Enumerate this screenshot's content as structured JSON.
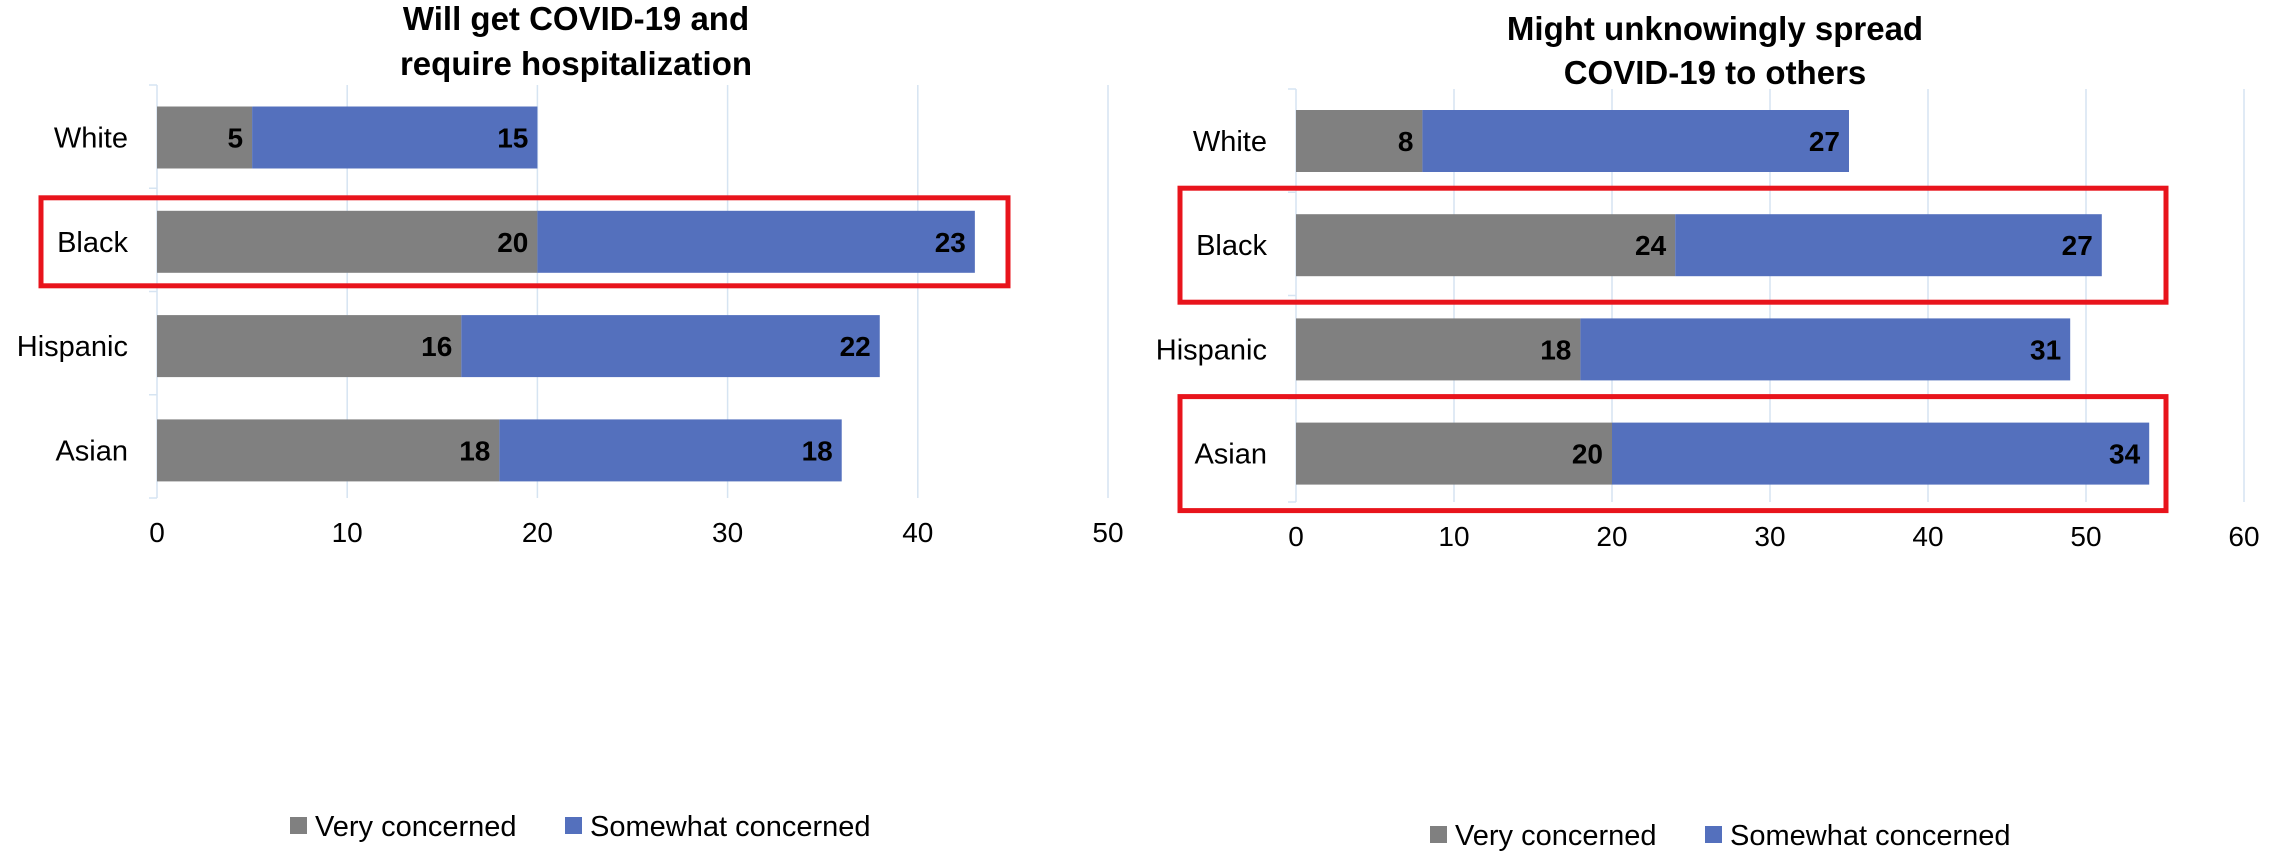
{
  "colors": {
    "very_concerned": "#808080",
    "somewhat_concerned": "#5470bd",
    "gridline": "#d6e4f2",
    "highlight_box": "#e8141c"
  },
  "chart_data": [
    {
      "type": "bar",
      "orientation": "horizontal",
      "stacked": true,
      "title": "Will get COVID-19 and\nrequire hospitalization",
      "title_lines": [
        "Will get COVID-19 and",
        "require hospitalization"
      ],
      "categories": [
        "White",
        "Black",
        "Hispanic",
        "Asian"
      ],
      "series": [
        {
          "name": "Very concerned",
          "values": [
            5,
            20,
            16,
            18
          ]
        },
        {
          "name": "Somewhat concerned",
          "values": [
            15,
            23,
            22,
            18
          ]
        }
      ],
      "xlim": [
        0,
        50
      ],
      "xticks": [
        "0",
        "10",
        "20",
        "30",
        "40",
        "50"
      ],
      "grid": true,
      "legend": "bottom",
      "highlighted": [
        "Black"
      ]
    },
    {
      "type": "bar",
      "orientation": "horizontal",
      "stacked": true,
      "title": "Might unknowingly spread\nCOVID-19 to others",
      "title_lines": [
        "Might unknowingly spread",
        "COVID-19 to others"
      ],
      "categories": [
        "White",
        "Black",
        "Hispanic",
        "Asian"
      ],
      "series": [
        {
          "name": "Very concerned",
          "values": [
            8,
            24,
            18,
            20
          ]
        },
        {
          "name": "Somewhat concerned",
          "values": [
            27,
            27,
            31,
            34
          ]
        }
      ],
      "xlim": [
        0,
        60
      ],
      "xticks": [
        "0",
        "10",
        "20",
        "30",
        "40",
        "50",
        "60"
      ],
      "grid": true,
      "legend": "bottom",
      "highlighted": [
        "Black",
        "Asian"
      ]
    }
  ]
}
